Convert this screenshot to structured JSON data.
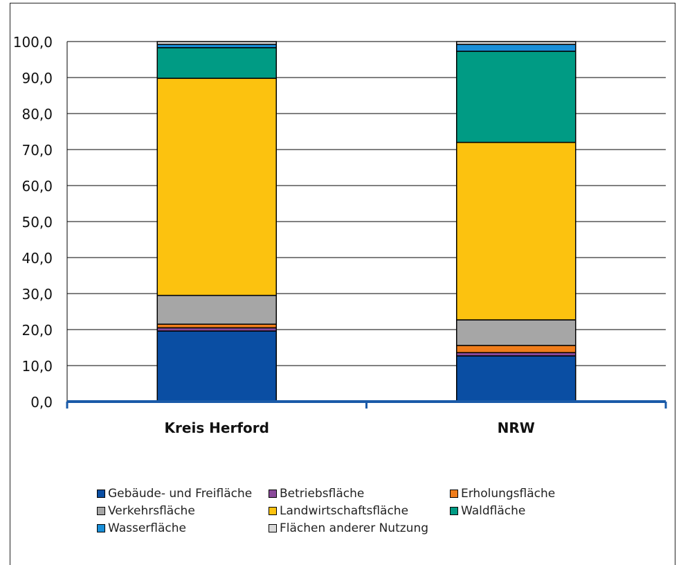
{
  "chart_data": {
    "type": "bar",
    "stacked": true,
    "categories": [
      "Kreis Herford",
      "NRW"
    ],
    "ylim": [
      0,
      100
    ],
    "yticks": [
      "0,0",
      "10,0",
      "20,0",
      "30,0",
      "40,0",
      "50,0",
      "60,0",
      "70,0",
      "80,0",
      "90,0",
      "100,0"
    ],
    "grid": true,
    "legend_position": "bottom",
    "series": [
      {
        "name": "Gebäude- und Freifläche",
        "color": "#0a4ea3",
        "values": [
          19.6,
          12.7
        ]
      },
      {
        "name": "Betriebsfläche",
        "color": "#8a4a9a",
        "values": [
          0.9,
          0.9
        ]
      },
      {
        "name": "Erholungsfläche",
        "color": "#f07d1b",
        "values": [
          1.0,
          2.0
        ]
      },
      {
        "name": "Verkehrsfläche",
        "color": "#a6a6a6",
        "values": [
          8.0,
          7.1
        ]
      },
      {
        "name": "Landwirtschaftsfläche",
        "color": "#fcc20f",
        "values": [
          60.3,
          49.3
        ]
      },
      {
        "name": "Waldfläche",
        "color": "#009b84",
        "values": [
          8.5,
          25.3
        ]
      },
      {
        "name": "Wasserfläche",
        "color": "#1a8fd8",
        "values": [
          0.9,
          1.9
        ]
      },
      {
        "name": "Flächen anderer Nutzung",
        "color": "#d8d8d8",
        "values": [
          0.8,
          0.8
        ]
      }
    ]
  }
}
